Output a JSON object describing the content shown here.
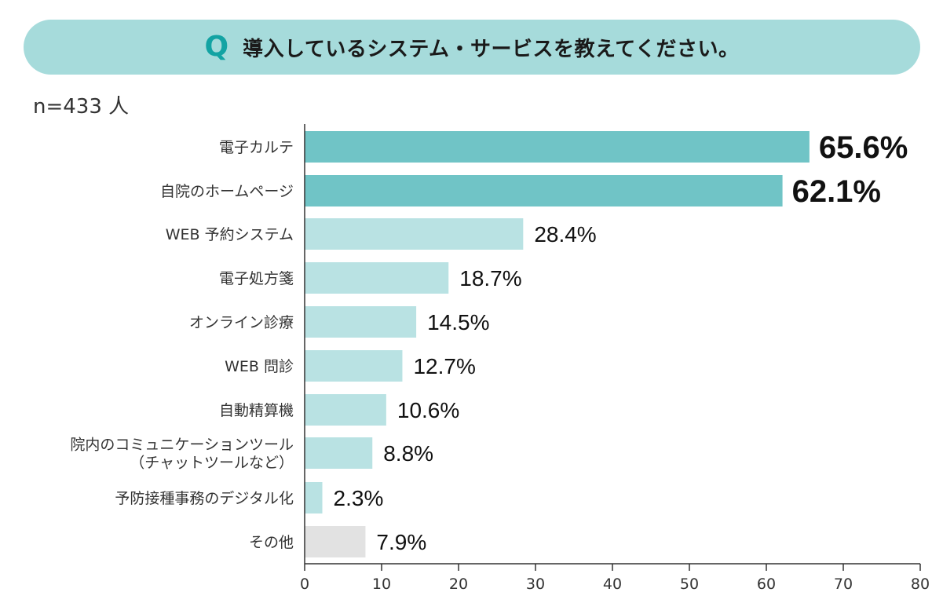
{
  "banner": {
    "q_mark": "Q",
    "question": "導入しているシステム・サービスを教えてください。"
  },
  "sample_size": "n=433 人",
  "colors": {
    "highlight": "#70c4c6",
    "normal": "#b9e2e3",
    "other": "#e2e2e2",
    "banner": "#a6dbdb",
    "q_mark": "#13a3a3"
  },
  "chart_data": {
    "type": "bar",
    "orientation": "horizontal",
    "title": "導入しているシステム・サービスを教えてください。",
    "categories": [
      [
        "電子カルテ"
      ],
      [
        "自院のホームページ"
      ],
      [
        "WEB 予約システム"
      ],
      [
        "電子処方箋"
      ],
      [
        "オンライン診療"
      ],
      [
        "WEB 問診"
      ],
      [
        "自動精算機"
      ],
      [
        "院内のコミュニケーションツール",
        "（チャットツールなど）"
      ],
      [
        "予防接種事務のデジタル化"
      ],
      [
        "その他"
      ]
    ],
    "values": [
      65.6,
      62.1,
      28.4,
      18.7,
      14.5,
      12.7,
      10.6,
      8.8,
      2.3,
      7.9
    ],
    "value_labels": [
      "65.6%",
      "62.1%",
      "28.4%",
      "18.7%",
      "14.5%",
      "12.7%",
      "10.6%",
      "8.8%",
      "2.3%",
      "7.9%"
    ],
    "bar_style": [
      "highlight",
      "highlight",
      "normal",
      "normal",
      "normal",
      "normal",
      "normal",
      "normal",
      "normal",
      "other"
    ],
    "xlim": [
      0,
      80
    ],
    "xticks": [
      0,
      10,
      20,
      30,
      40,
      50,
      60,
      70,
      80
    ],
    "grid": false,
    "xlabel": "",
    "ylabel": ""
  }
}
